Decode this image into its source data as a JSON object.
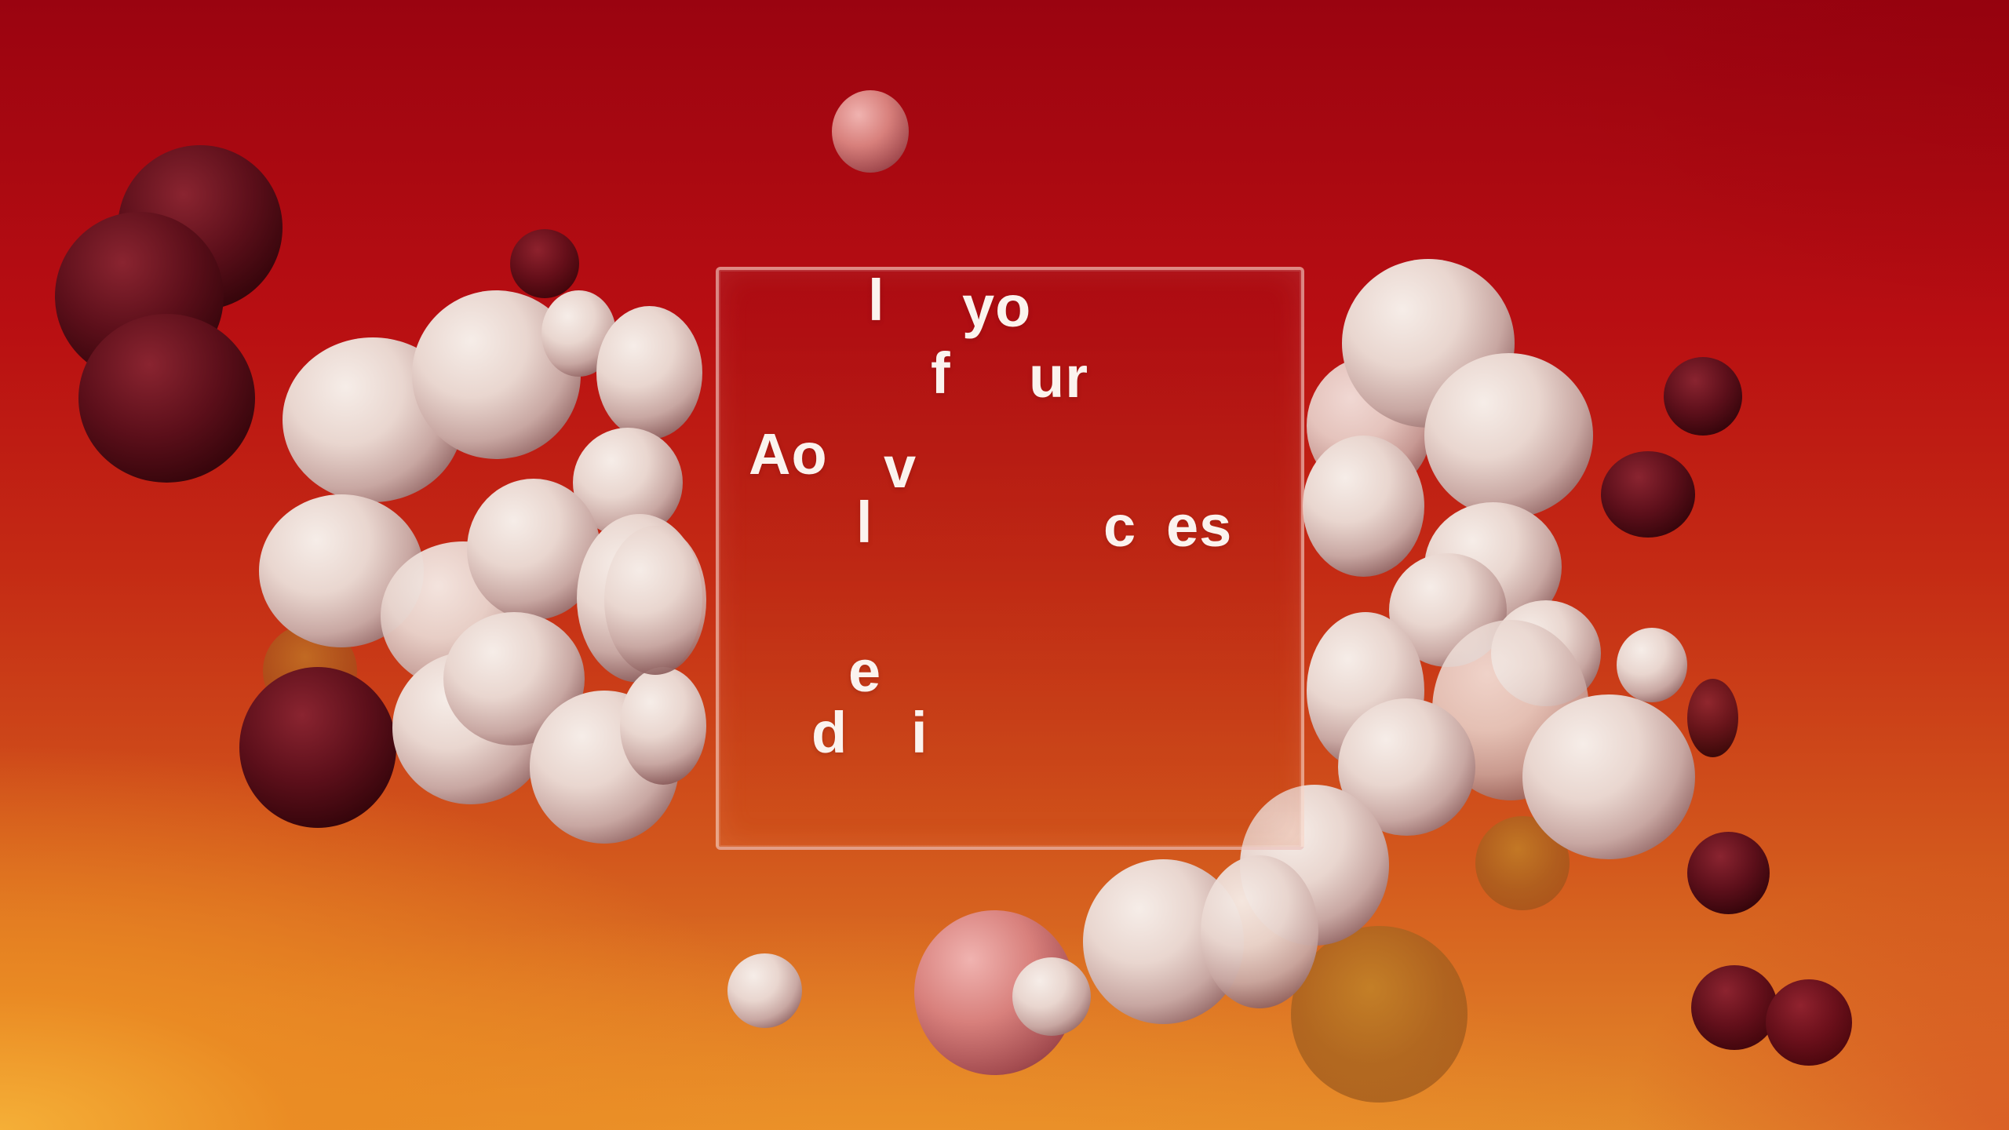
{
  "scene": {
    "glyphs": [
      {
        "id": "g1",
        "text": "l"
      },
      {
        "id": "g2",
        "text": "yo"
      },
      {
        "id": "g3",
        "text": "f"
      },
      {
        "id": "g4",
        "text": "ur"
      },
      {
        "id": "g5",
        "text": "Ao"
      },
      {
        "id": "g6",
        "text": "v"
      },
      {
        "id": "g7",
        "text": "l"
      },
      {
        "id": "g8",
        "text": "c"
      },
      {
        "id": "g9",
        "text": "es"
      },
      {
        "id": "g10",
        "text": "e"
      },
      {
        "id": "g11",
        "text": "d"
      },
      {
        "id": "g12",
        "text": "i"
      }
    ]
  }
}
